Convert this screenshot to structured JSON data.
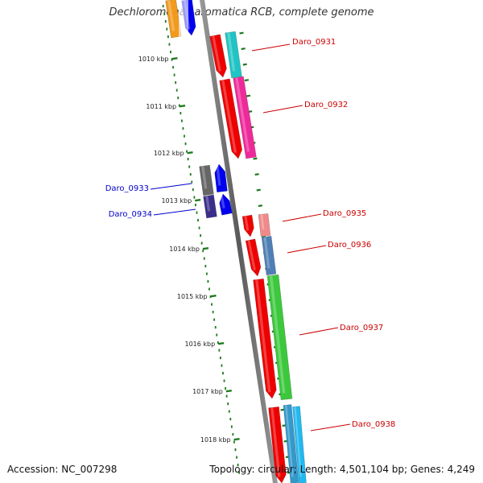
{
  "title": "Dechloromonas aromatica RCB, complete genome",
  "footer": {
    "accession": "Accession: NC_007298",
    "summary": "Topology: circular; Length: 4,501,104 bp; Genes: 4,249"
  },
  "scale": {
    "unit": "kbp",
    "ticks": [
      "1010 kbp",
      "1011 kbp",
      "1012 kbp",
      "1013 kbp",
      "1014 kbp",
      "1015 kbp",
      "1016 kbp",
      "1017 kbp",
      "1018 kbp"
    ],
    "tick_color": "#1f7a1f",
    "backbone_color": "#7a7a7a"
  },
  "genes": [
    {
      "name": "Daro_0931",
      "strand": "forward",
      "label_color": "#cc0000"
    },
    {
      "name": "Daro_0932",
      "strand": "forward",
      "label_color": "#cc0000"
    },
    {
      "name": "Daro_0933",
      "strand": "reverse",
      "label_color": "#0000cc"
    },
    {
      "name": "Daro_0934",
      "strand": "reverse",
      "label_color": "#0000cc"
    },
    {
      "name": "Daro_0935",
      "strand": "forward",
      "label_color": "#cc0000"
    },
    {
      "name": "Daro_0936",
      "strand": "forward",
      "label_color": "#cc0000"
    },
    {
      "name": "Daro_0937",
      "strand": "forward",
      "label_color": "#cc0000"
    },
    {
      "name": "Daro_0938",
      "strand": "forward",
      "label_color": "#cc0000"
    }
  ],
  "colors": {
    "forward_cds": "#ee0000",
    "reverse_cds": "#0000ee",
    "daro_0931": "#20c4c4",
    "daro_0932": "#ee2a9a",
    "daro_0933": "#666666",
    "daro_0934": "#3a2e8a",
    "daro_0935": "#f08a8a",
    "daro_0936": "#4f7fb5",
    "daro_0937": "#3cc83c",
    "daro_0938": "#3399cc",
    "offscreen_left": "#f29a1e"
  }
}
